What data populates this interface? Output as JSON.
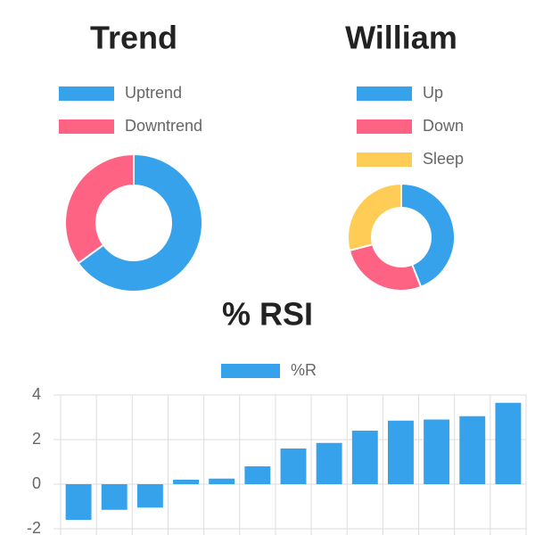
{
  "chart_data": [
    {
      "type": "doughnut",
      "title": "Trend",
      "categories": [
        "Uptrend",
        "Downtrend"
      ],
      "values": [
        65,
        35
      ],
      "colors": [
        "#36a2eb",
        "#ff6384"
      ]
    },
    {
      "type": "doughnut",
      "title": "William",
      "categories": [
        "Up",
        "Down",
        "Sleep"
      ],
      "values": [
        44,
        27,
        29
      ],
      "colors": [
        "#36a2eb",
        "#ff6384",
        "#ffcd56"
      ]
    },
    {
      "type": "bar",
      "title": "% RSI",
      "categories": [
        null,
        null,
        null,
        null,
        null,
        null,
        null,
        null,
        null,
        null,
        null,
        null,
        null
      ],
      "series": [
        {
          "name": "%R",
          "color": "#36a2eb",
          "values": [
            -1.6,
            -1.15,
            -1.05,
            0.2,
            0.25,
            0.8,
            1.6,
            1.85,
            2.4,
            2.85,
            2.9,
            3.05,
            3.65
          ]
        }
      ],
      "ylim": [
        -2,
        4
      ],
      "yticks": [
        -2,
        0,
        2,
        4
      ],
      "grid": true
    }
  ]
}
